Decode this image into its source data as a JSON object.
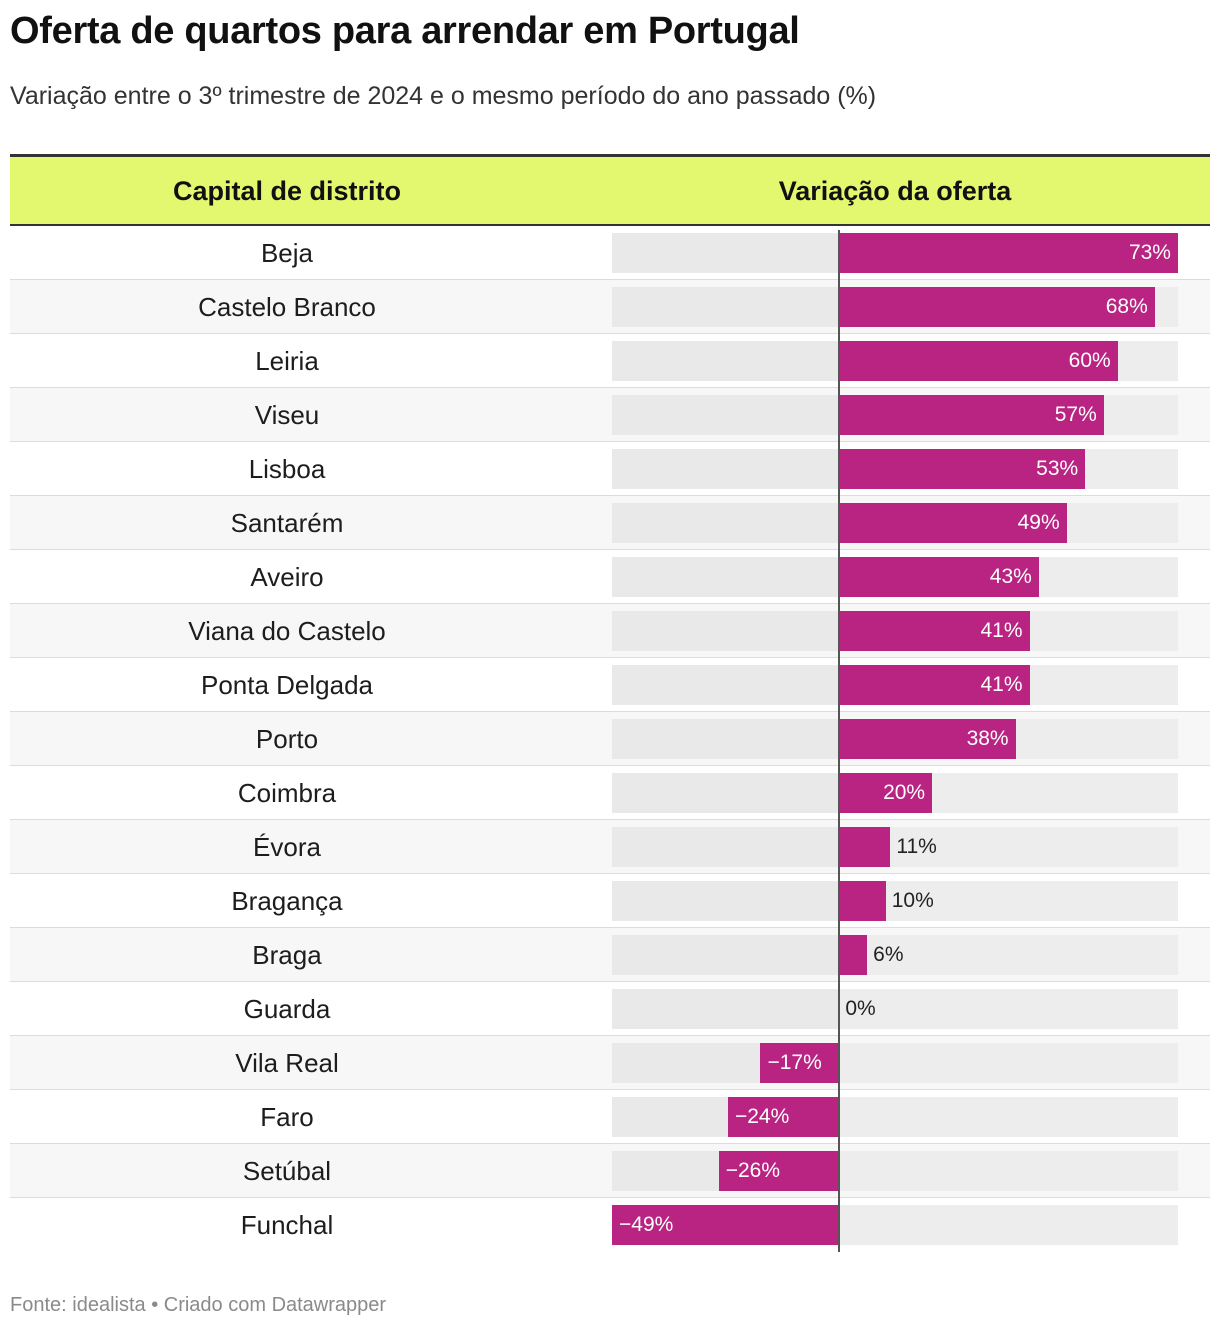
{
  "title": "Oferta de quartos para arrendar em Portugal",
  "subtitle": "Variação entre o 3º trimestre de 2024 e o mesmo período do ano passado (%)",
  "footer": {
    "text": "Fonte: idealista • Criado com Datawrapper"
  },
  "colors": {
    "header_bg": "#e3f76f",
    "bar": "#b92382",
    "track": "#e9e9e9"
  },
  "chart_data": {
    "type": "bar",
    "orientation": "horizontal",
    "title": "Oferta de quartos para arrendar em Portugal",
    "subtitle": "Variação entre o 3º trimestre de 2024 e o mesmo período do ano passado (%)",
    "column_headers": [
      "Capital de distrito",
      "Variação da oferta"
    ],
    "xlim": [
      -49,
      73
    ],
    "unit": "%",
    "categories": [
      "Beja",
      "Castelo Branco",
      "Leiria",
      "Viseu",
      "Lisboa",
      "Santarém",
      "Aveiro",
      "Viana do Castelo",
      "Ponta Delgada",
      "Porto",
      "Coimbra",
      "Évora",
      "Bragança",
      "Braga",
      "Guarda",
      "Vila Real",
      "Faro",
      "Setúbal",
      "Funchal"
    ],
    "values": [
      73,
      68,
      60,
      57,
      53,
      49,
      43,
      41,
      41,
      38,
      20,
      11,
      10,
      6,
      0,
      -17,
      -24,
      -26,
      -49
    ],
    "labels": [
      "73%",
      "68%",
      "60%",
      "57%",
      "53%",
      "49%",
      "43%",
      "41%",
      "41%",
      "38%",
      "20%",
      "11%",
      "10%",
      "6%",
      "0%",
      "−17%",
      "−24%",
      "−26%",
      "−49%"
    ]
  }
}
